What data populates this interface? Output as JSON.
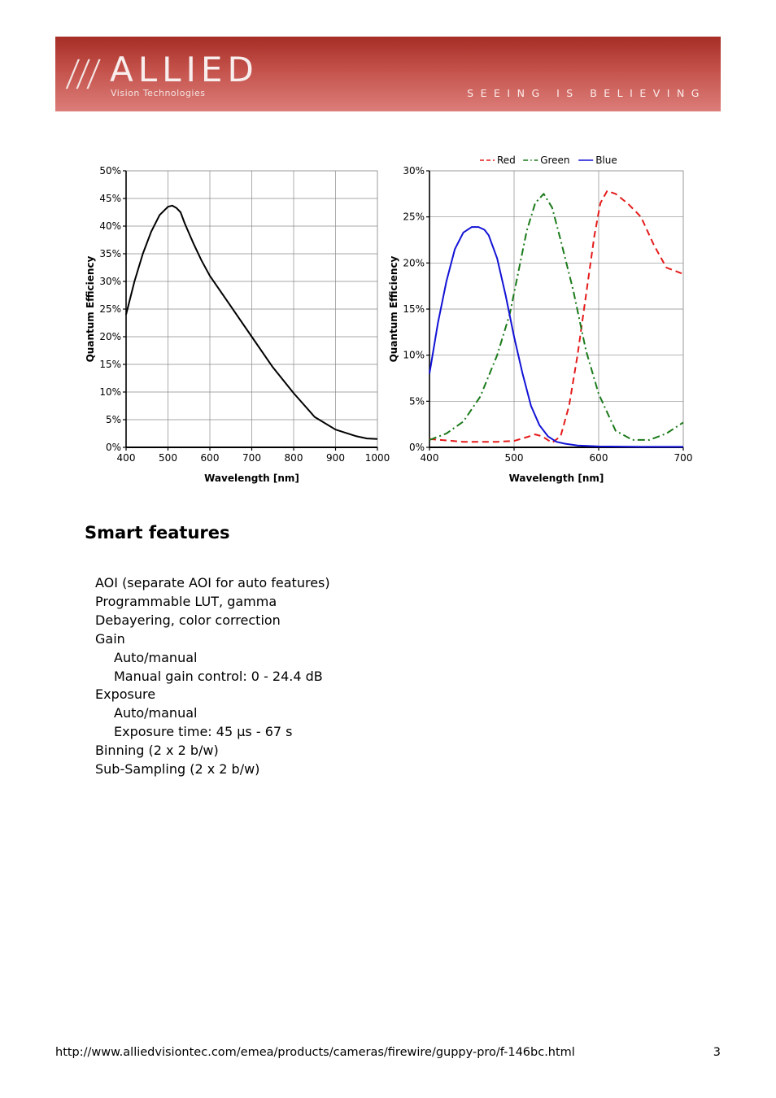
{
  "header": {
    "logo_slashes": "///",
    "logo_word": "ALLIED",
    "logo_sub": "Vision Technologies",
    "tagline": "SEEING IS BELIEVING",
    "colors": {
      "banner_top": "#a62e26",
      "banner_bottom": "#dc7d79"
    }
  },
  "chart_data": [
    {
      "type": "line",
      "title": "",
      "xlabel": "Wavelength [nm]",
      "ylabel": "Quantum Efficiency",
      "xlim": [
        400,
        1000
      ],
      "ylim": [
        0,
        50
      ],
      "x_ticks": [
        "400",
        "500",
        "600",
        "700",
        "800",
        "900",
        "1000"
      ],
      "y_ticks": [
        "0%",
        "5%",
        "10%",
        "15%",
        "20%",
        "25%",
        "30%",
        "35%",
        "40%",
        "45%",
        "50%"
      ],
      "grid": true,
      "series": [
        {
          "color": "#000000",
          "style": "solid",
          "x": [
            400,
            420,
            440,
            460,
            480,
            500,
            510,
            520,
            530,
            540,
            560,
            580,
            600,
            650,
            700,
            750,
            800,
            850,
            900,
            950,
            975,
            1000
          ],
          "y": [
            24,
            30,
            35,
            39,
            42,
            43.5,
            43.7,
            43.3,
            42.5,
            40.5,
            37,
            33.8,
            31,
            25.5,
            20,
            14.5,
            9.8,
            5.5,
            3.2,
            2,
            1.6,
            1.5
          ]
        }
      ]
    },
    {
      "type": "line",
      "title": "",
      "xlabel": "Wavelength [nm]",
      "ylabel": "Quantum Efficiency",
      "xlim": [
        400,
        700
      ],
      "ylim": [
        0,
        30
      ],
      "x_ticks": [
        "400",
        "500",
        "600",
        "700"
      ],
      "y_ticks": [
        "0%",
        "5%",
        "10%",
        "15%",
        "20%",
        "25%",
        "30%"
      ],
      "grid": true,
      "legend": "top",
      "series": [
        {
          "name": "Red",
          "color": "#e51a1a",
          "style": "dashed",
          "x": [
            400,
            440,
            480,
            500,
            515,
            525,
            533,
            545,
            555,
            565,
            575,
            585,
            595,
            602,
            610,
            620,
            635,
            650,
            665,
            680,
            700
          ],
          "y": [
            0.9,
            0.6,
            0.6,
            0.7,
            1.1,
            1.4,
            1.2,
            0.5,
            1.2,
            4.5,
            10,
            16.5,
            23,
            26.5,
            27.8,
            27.5,
            26.4,
            25,
            22,
            19.5,
            18.8
          ]
        },
        {
          "name": "Green",
          "color": "#1a7a1a",
          "style": "dashdot",
          "x": [
            400,
            420,
            440,
            460,
            480,
            495,
            505,
            515,
            525,
            535,
            545,
            555,
            570,
            585,
            600,
            620,
            640,
            660,
            680,
            700
          ],
          "y": [
            0.8,
            1.5,
            2.8,
            5.5,
            10,
            14.5,
            19,
            23.5,
            26.5,
            27.5,
            26,
            22.5,
            17,
            10.5,
            5.8,
            1.8,
            0.8,
            0.8,
            1.5,
            2.7
          ]
        },
        {
          "name": "Blue",
          "color": "#1212d6",
          "style": "solid",
          "x": [
            400,
            410,
            420,
            430,
            440,
            450,
            458,
            465,
            470,
            480,
            490,
            500,
            510,
            520,
            530,
            540,
            550,
            560,
            575,
            600,
            650,
            700
          ],
          "y": [
            8,
            13.5,
            18,
            21.5,
            23.3,
            23.9,
            23.9,
            23.6,
            23,
            20.5,
            16.5,
            12,
            8,
            4.5,
            2.4,
            1.2,
            0.6,
            0.4,
            0.2,
            0.1,
            0.05,
            0.05
          ]
        }
      ]
    }
  ],
  "features": {
    "title": "Smart features",
    "items": [
      {
        "text": "AOI (separate AOI for auto features)",
        "indent": false
      },
      {
        "text": "Programmable LUT, gamma",
        "indent": false
      },
      {
        "text": "Debayering, color correction",
        "indent": false
      },
      {
        "text": "Gain",
        "indent": false
      },
      {
        "text": "Auto/manual",
        "indent": true
      },
      {
        "text": "Manual gain control: 0 - 24.4 dB",
        "indent": true
      },
      {
        "text": "Exposure",
        "indent": false
      },
      {
        "text": "Auto/manual",
        "indent": true
      },
      {
        "text": "Exposure time: 45 µs - 67 s",
        "indent": true
      },
      {
        "text": "Binning (2 x 2 b/w)",
        "indent": false
      },
      {
        "text": "Sub-Sampling (2 x 2 b/w)",
        "indent": false
      }
    ]
  },
  "footer": {
    "url": "http://www.alliedvisiontec.com/emea/products/cameras/firewire/guppy-pro/f-146bc.html",
    "page_number": "3"
  }
}
